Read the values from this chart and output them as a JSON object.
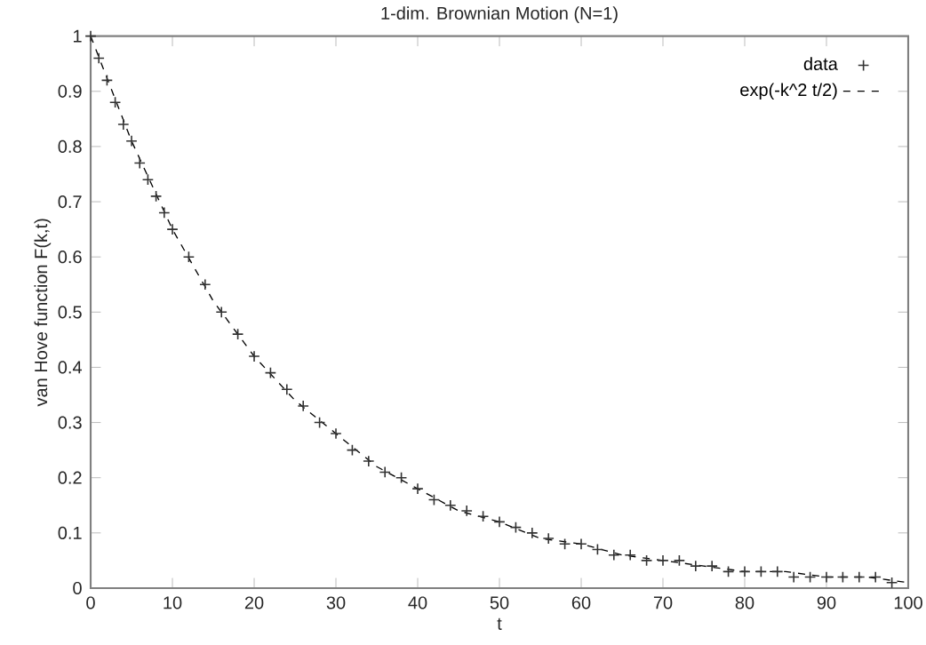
{
  "chart_data": {
    "type": "line",
    "title": "1-dim. Brownian Motion (N=1)",
    "xlabel": "t",
    "ylabel": "van Hove function F(k,t)",
    "xlim": [
      0,
      100
    ],
    "ylim": [
      0,
      1
    ],
    "xticks": [
      0,
      10,
      20,
      30,
      40,
      50,
      60,
      70,
      80,
      90,
      100
    ],
    "yticks": [
      0,
      0.1,
      0.2,
      0.3,
      0.4,
      0.5,
      0.6,
      0.7,
      0.8,
      0.9,
      1
    ],
    "grid": false,
    "legend": "top right",
    "series": [
      {
        "name": "data",
        "type": "scatter",
        "marker": "cross",
        "color": "#333333",
        "x": [
          0,
          1,
          2,
          3,
          4,
          5,
          6,
          7,
          8,
          9,
          10,
          12,
          14,
          16,
          18,
          20,
          22,
          24,
          26,
          28,
          30,
          32,
          34,
          36,
          38,
          40,
          42,
          44,
          46,
          48,
          50,
          52,
          54,
          56,
          58,
          60,
          62,
          64,
          66,
          68,
          70,
          72,
          74,
          76,
          78,
          80,
          82,
          84,
          86,
          88,
          90,
          92,
          94,
          96,
          98
        ],
        "values": [
          1.0,
          0.96,
          0.92,
          0.88,
          0.84,
          0.81,
          0.77,
          0.74,
          0.71,
          0.68,
          0.65,
          0.6,
          0.55,
          0.5,
          0.46,
          0.42,
          0.39,
          0.36,
          0.33,
          0.3,
          0.28,
          0.25,
          0.23,
          0.21,
          0.2,
          0.18,
          0.16,
          0.15,
          0.14,
          0.13,
          0.12,
          0.11,
          0.1,
          0.09,
          0.08,
          0.08,
          0.07,
          0.06,
          0.06,
          0.05,
          0.05,
          0.05,
          0.04,
          0.04,
          0.03,
          0.03,
          0.03,
          0.03,
          0.02,
          0.02,
          0.02,
          0.02,
          0.02,
          0.02,
          0.01
        ]
      },
      {
        "name": "exp(-k^2 t/2)",
        "type": "line",
        "line_style": "dashed",
        "marker": "none",
        "color": "#000000",
        "x": [
          0,
          5,
          10,
          15,
          20,
          25,
          30,
          35,
          40,
          45,
          50,
          55,
          60,
          65,
          70,
          75,
          80,
          85,
          90,
          95,
          100
        ],
        "values": [
          1.0,
          0.81,
          0.65,
          0.52,
          0.42,
          0.34,
          0.28,
          0.22,
          0.18,
          0.14,
          0.12,
          0.09,
          0.08,
          0.06,
          0.05,
          0.04,
          0.03,
          0.03,
          0.02,
          0.02,
          0.01
        ]
      }
    ]
  }
}
